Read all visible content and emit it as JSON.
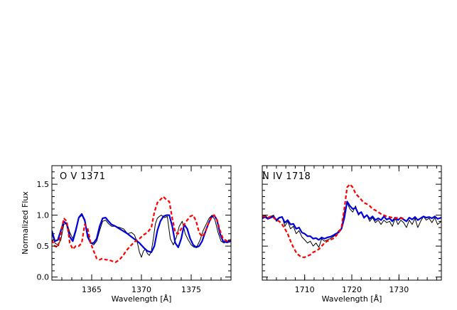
{
  "chart_data": [
    {
      "type": "line",
      "annotation": "O V 1371",
      "xlabel": "Wavelength [Å]",
      "ylabel": "Normalized Flux",
      "xlim": [
        1361,
        1379
      ],
      "ylim": [
        -0.05,
        1.8
      ],
      "xticks": [
        1365,
        1370,
        1375
      ],
      "yticks": [
        0.0,
        0.5,
        1.0,
        1.5
      ],
      "ytick_labels": [
        "0.0",
        "0.5",
        "1.0",
        "1.5"
      ],
      "grid": false,
      "series": [
        {
          "color": "#000000",
          "style": "solid",
          "width": 1,
          "x": [
            1361.0,
            1361.3,
            1361.6,
            1361.9,
            1362.2,
            1362.5,
            1362.8,
            1363.1,
            1363.4,
            1363.7,
            1364.0,
            1364.3,
            1364.6,
            1364.9,
            1365.2,
            1365.5,
            1365.8,
            1366.1,
            1366.4,
            1366.7,
            1367.0,
            1367.4,
            1367.8,
            1368.2,
            1368.6,
            1369.0,
            1369.3,
            1369.6,
            1369.8,
            1370.0,
            1370.2,
            1370.4,
            1370.6,
            1370.8,
            1371.0,
            1371.2,
            1371.4,
            1371.6,
            1371.8,
            1372.0,
            1372.3,
            1372.6,
            1372.9,
            1373.2,
            1373.5,
            1373.8,
            1374.1,
            1374.4,
            1374.7,
            1375.0,
            1375.3,
            1375.6,
            1375.9,
            1376.2,
            1376.5,
            1376.8,
            1377.1,
            1377.4,
            1377.7,
            1378.0,
            1378.3,
            1378.6,
            1379.0
          ],
          "y": [
            0.7,
            0.55,
            0.52,
            0.6,
            0.85,
            0.88,
            0.72,
            0.62,
            0.78,
            0.95,
            1.0,
            0.9,
            0.7,
            0.55,
            0.52,
            0.58,
            0.75,
            0.9,
            0.92,
            0.86,
            0.82,
            0.82,
            0.8,
            0.78,
            0.7,
            0.72,
            0.68,
            0.55,
            0.4,
            0.32,
            0.42,
            0.45,
            0.38,
            0.35,
            0.42,
            0.62,
            0.86,
            0.95,
            0.98,
            1.0,
            0.96,
            0.98,
            0.62,
            0.52,
            0.64,
            0.82,
            0.9,
            0.7,
            0.6,
            0.52,
            0.48,
            0.5,
            0.6,
            0.75,
            0.85,
            0.95,
            1.0,
            0.92,
            0.72,
            0.58,
            0.55,
            0.58,
            0.6
          ]
        },
        {
          "color": "#0000dd",
          "style": "solid",
          "width": 2.2,
          "x": [
            1361.0,
            1361.3,
            1361.6,
            1361.9,
            1362.2,
            1362.5,
            1362.8,
            1363.1,
            1363.4,
            1363.7,
            1364.0,
            1364.3,
            1364.6,
            1364.9,
            1365.2,
            1365.5,
            1365.8,
            1366.1,
            1366.4,
            1366.7,
            1367.0,
            1367.4,
            1367.8,
            1368.2,
            1368.6,
            1369.0,
            1369.4,
            1369.8,
            1370.2,
            1370.6,
            1371.0,
            1371.3,
            1371.6,
            1371.9,
            1372.2,
            1372.5,
            1372.8,
            1373.1,
            1373.4,
            1373.7,
            1374.0,
            1374.3,
            1374.6,
            1374.9,
            1375.2,
            1375.5,
            1375.8,
            1376.1,
            1376.4,
            1376.7,
            1377.0,
            1377.3,
            1377.6,
            1377.9,
            1378.2,
            1378.6,
            1379.0
          ],
          "y": [
            0.75,
            0.58,
            0.6,
            0.75,
            0.9,
            0.85,
            0.65,
            0.58,
            0.75,
            0.96,
            1.02,
            0.92,
            0.65,
            0.55,
            0.55,
            0.62,
            0.82,
            0.95,
            0.96,
            0.9,
            0.85,
            0.82,
            0.78,
            0.74,
            0.7,
            0.65,
            0.6,
            0.55,
            0.48,
            0.42,
            0.4,
            0.5,
            0.75,
            0.9,
            0.98,
            1.0,
            1.0,
            0.82,
            0.55,
            0.48,
            0.62,
            0.85,
            0.78,
            0.62,
            0.52,
            0.48,
            0.5,
            0.58,
            0.72,
            0.85,
            0.96,
            1.0,
            0.92,
            0.7,
            0.58,
            0.56,
            0.58
          ]
        },
        {
          "color": "#ff0000",
          "style": "dashed",
          "width": 2.2,
          "x": [
            1361.0,
            1361.3,
            1361.6,
            1361.9,
            1362.2,
            1362.5,
            1362.8,
            1363.1,
            1363.4,
            1363.7,
            1364.0,
            1364.3,
            1364.6,
            1364.9,
            1365.2,
            1365.5,
            1365.8,
            1366.1,
            1366.4,
            1366.7,
            1367.0,
            1367.4,
            1367.8,
            1368.2,
            1368.6,
            1369.0,
            1369.4,
            1369.8,
            1370.2,
            1370.6,
            1371.0,
            1371.3,
            1371.6,
            1371.9,
            1372.2,
            1372.5,
            1372.8,
            1373.1,
            1373.4,
            1373.7,
            1374.0,
            1374.3,
            1374.6,
            1374.9,
            1375.2,
            1375.5,
            1375.8,
            1376.1,
            1376.4,
            1376.7,
            1377.0,
            1377.3,
            1377.6,
            1377.9,
            1378.2,
            1378.6,
            1379.0
          ],
          "y": [
            0.6,
            0.5,
            0.48,
            0.7,
            0.95,
            0.9,
            0.55,
            0.45,
            0.5,
            0.5,
            0.55,
            0.85,
            0.78,
            0.55,
            0.42,
            0.3,
            0.28,
            0.3,
            0.28,
            0.28,
            0.26,
            0.24,
            0.28,
            0.36,
            0.45,
            0.52,
            0.58,
            0.62,
            0.68,
            0.72,
            0.8,
            1.05,
            1.2,
            1.25,
            1.3,
            1.25,
            1.22,
            0.95,
            0.72,
            0.7,
            0.78,
            0.85,
            0.92,
            0.98,
            1.0,
            0.9,
            0.72,
            0.65,
            0.72,
            0.85,
            0.95,
            1.0,
            0.92,
            0.75,
            0.62,
            0.58,
            0.6
          ]
        }
      ]
    },
    {
      "type": "line",
      "annotation": "N IV 1718",
      "xlabel": "Wavelength [Å]",
      "ylabel": "",
      "xlim": [
        1701,
        1739
      ],
      "ylim": [
        -0.05,
        1.8
      ],
      "xticks": [
        1710,
        1720,
        1730
      ],
      "yticks": [
        0.0,
        0.5,
        1.0,
        1.5
      ],
      "ytick_labels": [],
      "grid": false,
      "series": [
        {
          "color": "#000000",
          "style": "solid",
          "width": 1,
          "x": [
            1701.0,
            1701.6,
            1702.2,
            1702.8,
            1703.4,
            1704.0,
            1704.6,
            1705.2,
            1705.8,
            1706.4,
            1707.0,
            1707.6,
            1708.2,
            1708.8,
            1709.4,
            1710.0,
            1710.6,
            1711.2,
            1711.8,
            1712.4,
            1713.0,
            1713.6,
            1714.2,
            1714.8,
            1715.4,
            1716.0,
            1716.6,
            1717.2,
            1717.8,
            1718.4,
            1719.0,
            1719.6,
            1720.2,
            1720.8,
            1721.4,
            1722.0,
            1722.6,
            1723.2,
            1723.8,
            1724.4,
            1725.0,
            1725.6,
            1726.2,
            1726.8,
            1727.4,
            1728.0,
            1728.6,
            1729.2,
            1729.8,
            1730.4,
            1731.0,
            1731.6,
            1732.2,
            1732.8,
            1733.4,
            1734.0,
            1734.6,
            1735.2,
            1735.8,
            1736.4,
            1737.0,
            1737.6,
            1738.2,
            1739.0
          ],
          "y": [
            0.98,
            1.0,
            0.95,
            0.98,
            1.0,
            0.9,
            0.95,
            0.98,
            0.82,
            0.9,
            0.78,
            0.82,
            0.7,
            0.75,
            0.65,
            0.6,
            0.55,
            0.58,
            0.5,
            0.55,
            0.48,
            0.62,
            0.58,
            0.6,
            0.62,
            0.65,
            0.68,
            0.75,
            0.78,
            1.05,
            1.2,
            1.1,
            1.05,
            1.15,
            1.0,
            1.05,
            0.95,
            1.0,
            0.9,
            0.96,
            0.88,
            0.92,
            0.85,
            0.92,
            0.88,
            0.9,
            0.82,
            0.95,
            0.85,
            0.92,
            0.88,
            0.8,
            0.92,
            0.85,
            0.95,
            0.8,
            0.9,
            0.98,
            0.92,
            0.95,
            0.88,
            0.96,
            0.85,
            0.9
          ]
        },
        {
          "color": "#0000dd",
          "style": "solid",
          "width": 2.2,
          "x": [
            1701.0,
            1701.6,
            1702.2,
            1702.8,
            1703.4,
            1704.0,
            1704.6,
            1705.2,
            1705.8,
            1706.4,
            1707.0,
            1707.6,
            1708.2,
            1708.8,
            1709.4,
            1710.0,
            1710.6,
            1711.2,
            1711.8,
            1712.4,
            1713.0,
            1713.6,
            1714.2,
            1714.8,
            1715.4,
            1716.0,
            1716.6,
            1717.2,
            1717.8,
            1718.4,
            1719.0,
            1719.6,
            1720.2,
            1720.8,
            1721.4,
            1722.0,
            1722.6,
            1723.2,
            1723.8,
            1724.4,
            1725.0,
            1725.6,
            1726.2,
            1726.8,
            1727.4,
            1728.0,
            1728.6,
            1729.2,
            1729.8,
            1730.4,
            1731.0,
            1731.6,
            1732.2,
            1732.8,
            1733.4,
            1734.0,
            1734.6,
            1735.2,
            1735.8,
            1736.4,
            1737.0,
            1737.6,
            1738.2,
            1739.0
          ],
          "y": [
            0.95,
            0.97,
            0.94,
            0.96,
            0.98,
            0.92,
            0.96,
            0.97,
            0.88,
            0.92,
            0.85,
            0.86,
            0.78,
            0.8,
            0.72,
            0.7,
            0.66,
            0.66,
            0.62,
            0.63,
            0.6,
            0.64,
            0.62,
            0.64,
            0.65,
            0.67,
            0.7,
            0.72,
            0.78,
            0.95,
            1.22,
            1.15,
            1.1,
            1.12,
            1.02,
            1.05,
            0.96,
            1.0,
            0.94,
            0.98,
            0.92,
            0.95,
            0.92,
            0.98,
            0.93,
            0.95,
            0.9,
            0.96,
            0.92,
            0.96,
            0.93,
            0.9,
            0.96,
            0.93,
            0.97,
            0.92,
            0.95,
            0.98,
            0.96,
            0.97,
            0.95,
            0.98,
            0.94,
            0.96
          ]
        },
        {
          "color": "#ff0000",
          "style": "dashed",
          "width": 2.2,
          "x": [
            1701.0,
            1701.6,
            1702.2,
            1702.8,
            1703.4,
            1704.0,
            1704.6,
            1705.2,
            1705.8,
            1706.4,
            1707.0,
            1707.6,
            1708.2,
            1708.8,
            1709.4,
            1710.0,
            1710.6,
            1711.2,
            1711.8,
            1712.4,
            1713.0,
            1713.6,
            1714.2,
            1714.8,
            1715.4,
            1716.0,
            1716.6,
            1717.2,
            1717.8,
            1718.4,
            1719.0,
            1719.6,
            1720.2,
            1720.8,
            1721.4,
            1722.0,
            1722.6,
            1723.2,
            1723.8,
            1724.4,
            1725.0,
            1725.6,
            1726.2,
            1726.8,
            1727.4,
            1728.0,
            1728.6,
            1729.2,
            1729.8,
            1730.4,
            1731.0
          ],
          "y": [
            0.98,
            0.98,
            0.96,
            0.98,
            0.96,
            0.92,
            0.9,
            0.85,
            0.78,
            0.7,
            0.58,
            0.48,
            0.4,
            0.35,
            0.32,
            0.32,
            0.34,
            0.36,
            0.4,
            0.42,
            0.45,
            0.5,
            0.55,
            0.58,
            0.6,
            0.62,
            0.66,
            0.72,
            0.8,
            1.1,
            1.45,
            1.5,
            1.45,
            1.35,
            1.3,
            1.25,
            1.2,
            1.18,
            1.15,
            1.1,
            1.08,
            1.05,
            1.02,
            1.0,
            0.98,
            0.97,
            0.96,
            0.95,
            0.96,
            0.95,
            0.95
          ]
        }
      ]
    }
  ]
}
